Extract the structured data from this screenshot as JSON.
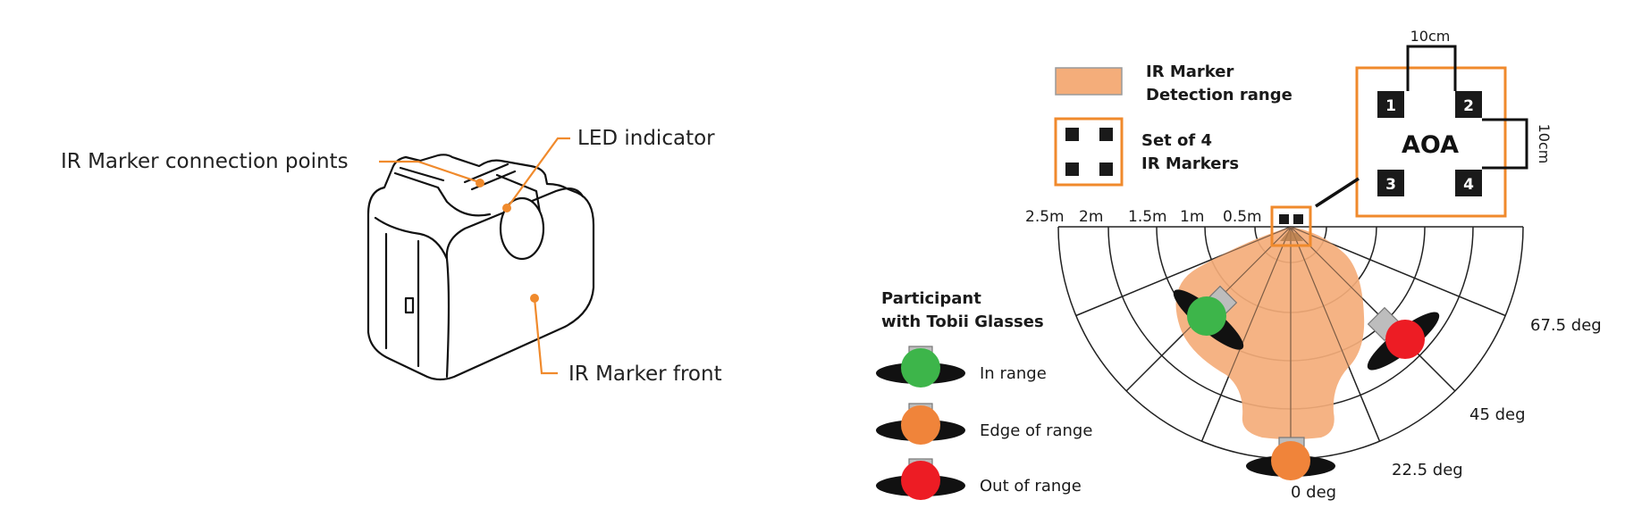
{
  "colors": {
    "orange": "#f08a2c",
    "range_fill": "#f4ad7a",
    "in_range": "#3db54a",
    "edge_of_range": "#f0843a",
    "out_of_range": "#ed1c24",
    "ink": "#1a1a1a"
  },
  "device": {
    "label_connection": "IR Marker connection points",
    "label_led": "LED indicator",
    "label_front": "IR Marker front"
  },
  "legend": {
    "detection_line1": "IR Marker",
    "detection_line2": "Detection range",
    "markers_line1": "Set of 4",
    "markers_line2": "IR Markers"
  },
  "aoa": {
    "title": "AOA",
    "markers": [
      "1",
      "2",
      "3",
      "4"
    ],
    "dim_horizontal": "10cm",
    "dim_vertical": "10cm"
  },
  "polar": {
    "distance_labels": [
      "2.5m",
      "2m",
      "1.5m",
      "1m",
      "0.5m"
    ],
    "angle_labels": [
      "0 deg",
      "22.5 deg",
      "45 deg",
      "67.5 deg"
    ]
  },
  "participants": {
    "title_line1": "Participant",
    "title_line2": "with Tobii Glasses",
    "states": [
      {
        "label": "In range"
      },
      {
        "label": "Edge of range"
      },
      {
        "label": "Out of range"
      }
    ]
  }
}
